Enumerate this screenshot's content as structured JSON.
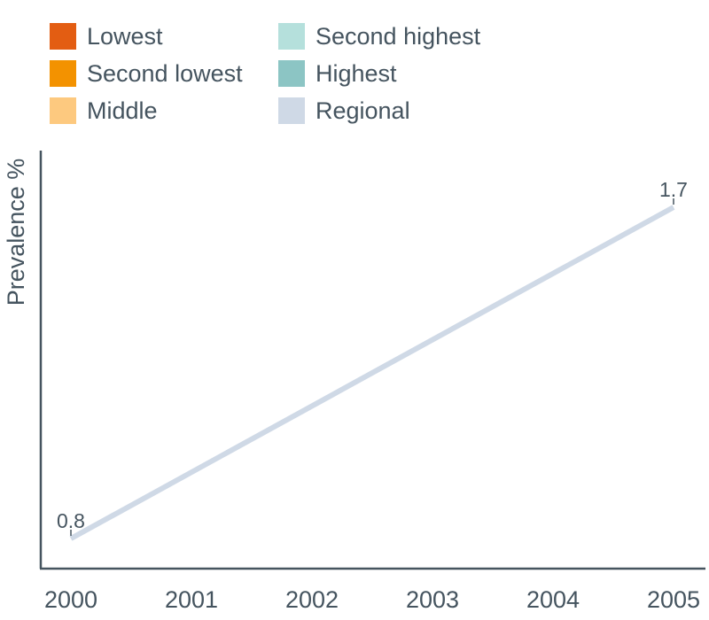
{
  "legend": {
    "items": [
      {
        "label": "Lowest",
        "color": "#e35d12"
      },
      {
        "label": "Second lowest",
        "color": "#f39200"
      },
      {
        "label": "Middle",
        "color": "#fdc97f"
      },
      {
        "label": "Second highest",
        "color": "#b5e0dc"
      },
      {
        "label": "Highest",
        "color": "#8cc5c4"
      },
      {
        "label": "Regional",
        "color": "#cfd9e6"
      }
    ]
  },
  "chart_data": {
    "type": "line",
    "title": "",
    "xlabel": "",
    "ylabel": "Prevalence %",
    "x": [
      "2000",
      "2001",
      "2002",
      "2003",
      "2004",
      "2005"
    ],
    "series": [
      {
        "name": "Regional",
        "color": "#cfd9e6",
        "points": [
          {
            "x": "2000",
            "y": 0.8,
            "label": "0.8"
          },
          {
            "x": "2005",
            "y": 1.7,
            "label": "1.7"
          }
        ]
      }
    ],
    "axis_color": "#45545f",
    "grid": false,
    "legend_position": "top-left"
  }
}
